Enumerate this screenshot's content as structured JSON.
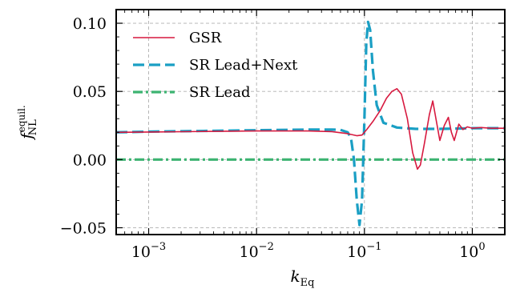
{
  "chart_data": {
    "type": "line",
    "xlabel": "k",
    "xlabel_sub": "Eq",
    "ylabel": "f",
    "ylabel_sup": "equil.",
    "ylabel_sub": "NL",
    "x_scale": "log",
    "xlim": [
      0.0005,
      2
    ],
    "ylim": [
      -0.055,
      0.11
    ],
    "grid": true,
    "legend_position": "top-left",
    "x_ticks": [
      {
        "value": 0.001,
        "base": "10",
        "exp": "−3"
      },
      {
        "value": 0.01,
        "base": "10",
        "exp": "−2"
      },
      {
        "value": 0.1,
        "base": "10",
        "exp": "−1"
      },
      {
        "value": 1,
        "base": "10",
        "exp": "0"
      }
    ],
    "y_ticks": [
      {
        "value": 0.1,
        "label": "0.10"
      },
      {
        "value": 0.05,
        "label": "0.05"
      },
      {
        "value": 0.0,
        "label": "0.00"
      },
      {
        "value": -0.05,
        "label": "−0.05"
      }
    ],
    "series": [
      {
        "name": "GSR",
        "color": "#d7193f",
        "style": "solid",
        "x": [
          0.0005,
          0.001,
          0.003,
          0.01,
          0.03,
          0.05,
          0.07,
          0.085,
          0.095,
          0.105,
          0.12,
          0.14,
          0.16,
          0.18,
          0.2,
          0.22,
          0.25,
          0.28,
          0.31,
          0.33,
          0.36,
          0.4,
          0.43,
          0.46,
          0.5,
          0.55,
          0.6,
          0.64,
          0.68,
          0.75,
          0.82,
          0.9,
          1.0,
          1.2,
          1.5,
          2.0
        ],
        "y": [
          0.02,
          0.0202,
          0.0206,
          0.021,
          0.021,
          0.0205,
          0.019,
          0.0175,
          0.018,
          0.022,
          0.028,
          0.036,
          0.045,
          0.05,
          0.052,
          0.048,
          0.03,
          0.005,
          -0.007,
          -0.004,
          0.012,
          0.033,
          0.043,
          0.03,
          0.014,
          0.025,
          0.031,
          0.02,
          0.014,
          0.026,
          0.022,
          0.024,
          0.023,
          0.0235,
          0.023,
          0.023
        ]
      },
      {
        "name": "SR Lead+Next",
        "color": "#1a9fc4",
        "style": "dashed",
        "x": [
          0.0005,
          0.001,
          0.01,
          0.03,
          0.05,
          0.06,
          0.07,
          0.075,
          0.08,
          0.085,
          0.09,
          0.095,
          0.1,
          0.104,
          0.108,
          0.113,
          0.12,
          0.13,
          0.15,
          0.2,
          0.3,
          0.5,
          1.0,
          2.0
        ],
        "y": [
          0.02,
          0.0205,
          0.0215,
          0.022,
          0.022,
          0.0218,
          0.02,
          0.016,
          0.0,
          -0.03,
          -0.048,
          -0.03,
          0.03,
          0.085,
          0.101,
          0.095,
          0.065,
          0.04,
          0.027,
          0.0235,
          0.0225,
          0.0225,
          0.023,
          0.023
        ]
      },
      {
        "name": "SR Lead",
        "color": "#3cb371",
        "style": "dashdot",
        "x": [
          0.0005,
          2.0
        ],
        "y": [
          0.0,
          0.0
        ]
      }
    ]
  }
}
